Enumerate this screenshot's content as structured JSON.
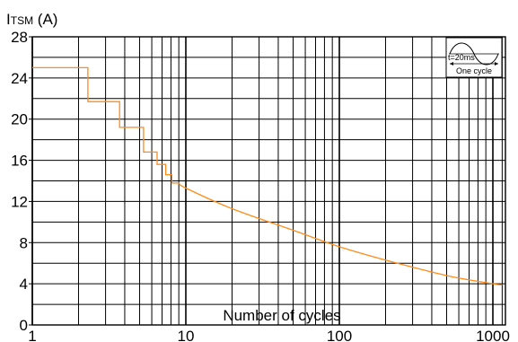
{
  "chart_data": {
    "type": "line",
    "title": "",
    "ylabel": "ITSM (A)",
    "ylabel_parts": {
      "main": "I",
      "sub": "TSM",
      "unit": " (A)"
    },
    "xlabel": "Number of cycles",
    "x_scale": "log",
    "xlim": [
      1,
      1000
    ],
    "ylim": [
      0,
      28
    ],
    "x_tick_labels": [
      "1",
      "10",
      "100",
      "1000"
    ],
    "y_tick_labels": [
      "0",
      "4",
      "8",
      "12",
      "16",
      "20",
      "24",
      "28"
    ],
    "grid": true,
    "line_color": "#ff8c1a",
    "series": [
      {
        "step_points": [
          [
            1,
            25
          ],
          [
            2.3,
            25
          ],
          [
            2.3,
            21.7
          ],
          [
            3.7,
            21.7
          ],
          [
            3.7,
            19.2
          ],
          [
            5.3,
            19.2
          ],
          [
            5.3,
            16.8
          ],
          [
            6.5,
            16.8
          ],
          [
            6.5,
            15.6
          ],
          [
            7.4,
            15.6
          ],
          [
            7.4,
            14.6
          ],
          [
            8.1,
            14.6
          ],
          [
            8.1,
            13.8
          ],
          [
            9,
            13.8
          ]
        ],
        "curve_points": [
          [
            9,
            13.8
          ],
          [
            10,
            13.3
          ],
          [
            20,
            11.3
          ],
          [
            50,
            9.2
          ],
          [
            100,
            7.6
          ],
          [
            200,
            6.3
          ],
          [
            500,
            4.8
          ],
          [
            1000,
            4.0
          ],
          [
            1150,
            3.9
          ]
        ]
      }
    ],
    "inset": {
      "label_top": "t=20ms",
      "label_bottom": "One cycle"
    }
  }
}
